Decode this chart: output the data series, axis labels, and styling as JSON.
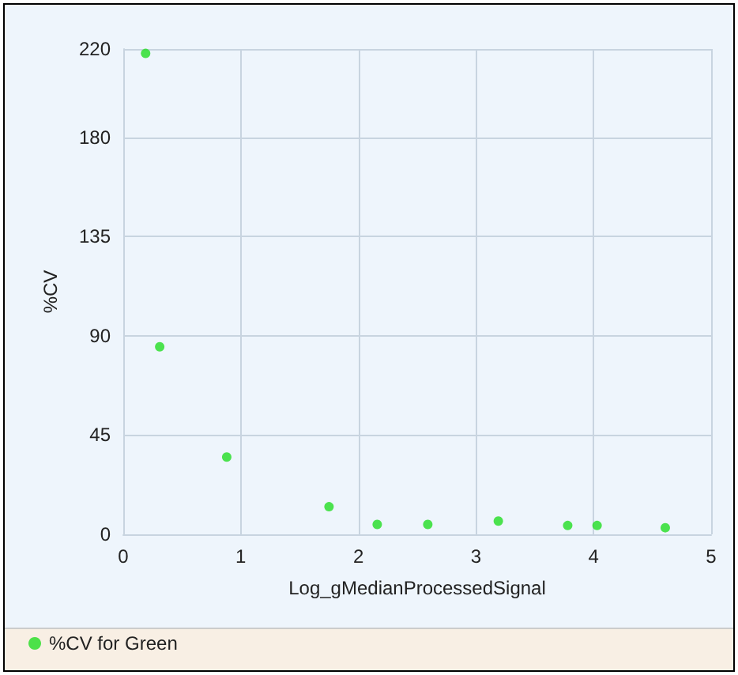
{
  "chart_data": {
    "type": "scatter",
    "xlabel": "Log_gMedianProcessedSignal",
    "ylabel": "%CV",
    "x": [
      0.19,
      0.31,
      0.88,
      1.75,
      2.16,
      2.59,
      3.19,
      3.78,
      4.03,
      4.61
    ],
    "series": [
      {
        "name": "%CV for Green",
        "color": "#22dd22",
        "values": [
          218,
          85,
          35,
          12.5,
          4.5,
          4.5,
          6,
          4,
          4,
          3
        ]
      }
    ],
    "xlim": [
      0,
      5
    ],
    "xticks": [
      0,
      1,
      2,
      3,
      4,
      5
    ],
    "ylim": [
      0,
      220
    ],
    "yticks": [
      0,
      45,
      90,
      135,
      180,
      220
    ],
    "grid": true,
    "legend": "bottom",
    "marker": "circle"
  }
}
